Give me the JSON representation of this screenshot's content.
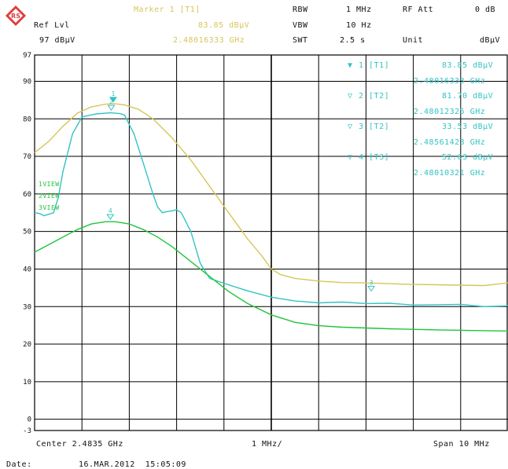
{
  "header": {
    "marker_title": "Marker 1 [T1]",
    "marker_level": "83.85 dBµV",
    "marker_freq": "2.48016333 GHz",
    "ref_lvl_label": "Ref Lvl",
    "ref_lvl_value": "97 dBµV",
    "rbw_label": "RBW",
    "rbw_value": "1 MHz",
    "vbw_label": "VBW",
    "vbw_value": "10 Hz",
    "swt_label": "SWT",
    "swt_value": "2.5 s",
    "rf_att_label": "RF Att",
    "rf_att_value": "0 dB",
    "unit_label": "Unit",
    "unit_value": "dBµV"
  },
  "markers_table": [
    {
      "name": "1 [T1]",
      "level": "83.85 dBµV",
      "freq": "2.48016333 GHz",
      "symbol": "▼"
    },
    {
      "name": "2 [T2]",
      "level": "81.70 dBµV",
      "freq": "2.48012325 GHz",
      "symbol": "▽"
    },
    {
      "name": "3 [T2]",
      "level": "33.53 dBµV",
      "freq": "2.48561423 GHz",
      "symbol": "▽"
    },
    {
      "name": "4 [T3]",
      "level": "52.63 dBµV",
      "freq": "2.48010321 GHz",
      "symbol": "▽"
    }
  ],
  "footer": {
    "center": "Center 2.4835 GHz",
    "div": "1 MHz/",
    "span": "Span 10 MHz",
    "date_label": "Date:",
    "date_value": "16.MAR.2012  15:05:09"
  },
  "colors": {
    "trace1": "#d6c65a",
    "trace2": "#34c3c3",
    "trace3": "#22c43a",
    "grid": "#000000"
  },
  "chart_data": {
    "type": "line",
    "xlabel": "",
    "ylabel": "",
    "xlim": [
      2.4785,
      2.4885
    ],
    "ylim": [
      -3,
      97
    ],
    "y_ticks": [
      97,
      90,
      80,
      70,
      60,
      50,
      40,
      30,
      20,
      10,
      0,
      -3
    ],
    "x_unit": "GHz",
    "y_unit": "dBµV",
    "grid": true,
    "trace_labels": [
      "1VIEW",
      "2VIEW",
      "3VIEW"
    ],
    "series": [
      {
        "name": "1VIEW",
        "color": "#d6c65a",
        "x": [
          2.4785,
          2.4788,
          2.4791,
          2.4794,
          2.4797,
          2.48,
          2.4802,
          2.4804,
          2.4807,
          2.481,
          2.4814,
          2.4818,
          2.4822,
          2.4826,
          2.483,
          2.4833,
          2.4835,
          2.4837,
          2.484,
          2.4845,
          2.485,
          2.4855,
          2.486,
          2.4865,
          2.487,
          2.4875,
          2.488,
          2.4885
        ],
        "y": [
          71,
          74,
          78,
          81.5,
          83.2,
          83.9,
          84.0,
          83.7,
          82.5,
          80,
          75,
          69,
          62,
          55,
          48,
          43.5,
          40,
          38.5,
          37.5,
          36.8,
          36.4,
          36.3,
          36.1,
          35.9,
          35.8,
          35.7,
          35.6,
          36.3
        ]
      },
      {
        "name": "2VIEW",
        "color": "#34c3c3",
        "x": [
          2.4785,
          2.4786,
          2.4787,
          2.4789,
          2.479,
          2.4791,
          2.4793,
          2.4795,
          2.4798,
          2.4801,
          2.4803,
          2.4804,
          2.4806,
          2.4808,
          2.481,
          2.4811,
          2.4812,
          2.4813,
          2.4814,
          2.4815,
          2.4816,
          2.4818,
          2.482,
          2.4822,
          2.4825,
          2.4828,
          2.483,
          2.4835,
          2.484,
          2.4845,
          2.485,
          2.4855,
          2.486,
          2.4865,
          2.487,
          2.4875,
          2.488,
          2.4885
        ],
        "y": [
          55,
          54.8,
          54.2,
          55,
          59,
          66,
          76,
          80.5,
          81.3,
          81.6,
          81.4,
          81.0,
          76,
          68,
          60,
          56.5,
          55,
          55.3,
          55.5,
          55.8,
          55,
          50,
          41.5,
          37.5,
          36.2,
          35.0,
          34.2,
          32.5,
          31.5,
          31.0,
          31.2,
          30.8,
          30.9,
          30.4,
          30.5,
          30.6,
          30.0,
          30.2
        ]
      },
      {
        "name": "3VIEW",
        "color": "#22c43a",
        "x": [
          2.4785,
          2.4788,
          2.4791,
          2.4794,
          2.4797,
          2.48,
          2.4802,
          2.4805,
          2.4808,
          2.4811,
          2.4814,
          2.4817,
          2.482,
          2.4823,
          2.4826,
          2.483,
          2.4835,
          2.484,
          2.4845,
          2.485,
          2.486,
          2.487,
          2.488,
          2.4885
        ],
        "y": [
          44.5,
          46.5,
          48.5,
          50.5,
          52,
          52.6,
          52.6,
          52,
          50.5,
          48.5,
          46,
          43,
          40,
          37,
          34,
          30.8,
          27.8,
          25.8,
          24.9,
          24.5,
          24.1,
          23.8,
          23.6,
          23.5
        ]
      }
    ],
    "markers": [
      {
        "label": "1",
        "x": 2.48016,
        "y": 83.85,
        "color": "#34c3c3",
        "filled": true
      },
      {
        "label": "2",
        "x": 2.48012,
        "y": 81.7,
        "color": "#34c3c3",
        "filled": false
      },
      {
        "label": "3",
        "x": 2.48561,
        "y": 33.53,
        "color": "#34c3c3",
        "filled": false
      },
      {
        "label": "4",
        "x": 2.4801,
        "y": 52.63,
        "color": "#34c3c3",
        "filled": false
      }
    ]
  }
}
